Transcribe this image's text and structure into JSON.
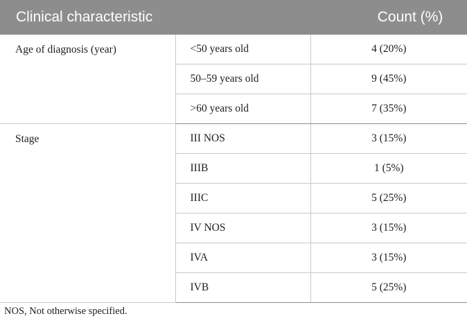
{
  "header": {
    "characteristic": "Clinical characteristic",
    "count": "Count (%)"
  },
  "groups": [
    {
      "label": "Age of diagnosis (year)",
      "rows": [
        {
          "sub": "<50 years old",
          "count": "4 (20%)"
        },
        {
          "sub": "50–59 years old",
          "count": "9 (45%)"
        },
        {
          "sub": ">60 years old",
          "count": "7 (35%)"
        }
      ]
    },
    {
      "label": "Stage",
      "rows": [
        {
          "sub": "III NOS",
          "count": "3 (15%)"
        },
        {
          "sub": "IIIB",
          "count": "1 (5%)"
        },
        {
          "sub": "IIIC",
          "count": "5 (25%)"
        },
        {
          "sub": "IV NOS",
          "count": "3 (15%)"
        },
        {
          "sub": "IVA",
          "count": "3 (15%)"
        },
        {
          "sub": "IVB",
          "count": "5 (25%)"
        }
      ]
    }
  ],
  "footnote": "NOS, Not otherwise specified.",
  "colors": {
    "header_bg": "#8d8d8d",
    "header_text": "#ffffff",
    "rule": "#c8c8c8"
  }
}
